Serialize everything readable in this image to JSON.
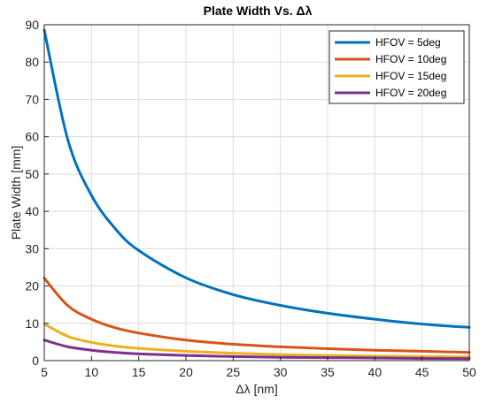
{
  "chart_data": {
    "type": "line",
    "title": "Plate Width Vs. Δλ",
    "xlabel": "Δλ [nm]",
    "ylabel": "Plate Width [mm]",
    "xlim": [
      5,
      50
    ],
    "ylim": [
      0,
      90
    ],
    "xticks": [
      5,
      10,
      15,
      20,
      25,
      30,
      35,
      40,
      45,
      50
    ],
    "yticks": [
      0,
      10,
      20,
      30,
      40,
      50,
      60,
      70,
      80,
      90
    ],
    "grid": true,
    "legend_position": "top-right",
    "x": [
      5,
      7.5,
      10,
      12.5,
      15,
      20,
      25,
      30,
      35,
      40,
      45,
      50
    ],
    "series": [
      {
        "name": "HFOV = 5deg",
        "color": "#0072BD",
        "values": [
          88.6,
          59.1,
          44.3,
          35.4,
          29.5,
          22.2,
          17.7,
          14.8,
          12.7,
          11.1,
          9.8,
          8.9
        ]
      },
      {
        "name": "HFOV = 10deg",
        "color": "#D95319",
        "values": [
          22.1,
          14.7,
          11.1,
          8.8,
          7.4,
          5.5,
          4.4,
          3.7,
          3.2,
          2.8,
          2.5,
          2.2
        ]
      },
      {
        "name": "HFOV = 15deg",
        "color": "#EDB120",
        "values": [
          9.8,
          6.5,
          4.9,
          3.9,
          3.3,
          2.5,
          2.0,
          1.6,
          1.4,
          1.2,
          1.1,
          1.0
        ]
      },
      {
        "name": "HFOV = 20deg",
        "color": "#7E2F8E",
        "values": [
          5.5,
          3.7,
          2.8,
          2.2,
          1.8,
          1.4,
          1.1,
          0.9,
          0.8,
          0.7,
          0.6,
          0.55
        ]
      }
    ]
  }
}
